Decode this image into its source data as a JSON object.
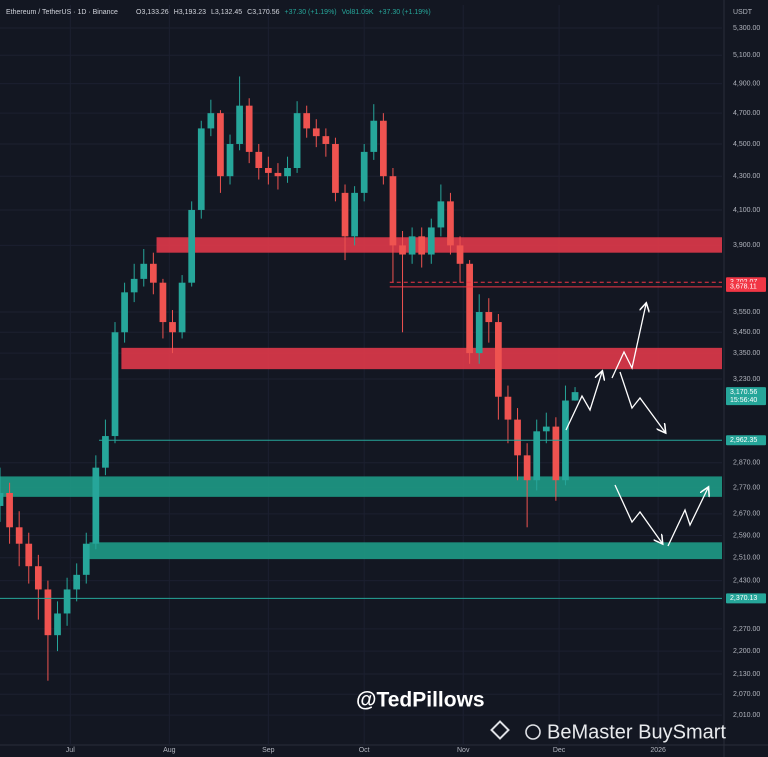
{
  "chart_data": {
    "type": "candlestick",
    "symbol": "Ethereum / TetherUS · 1D · Binance",
    "header": [
      "O3,133.26",
      "H3,193.23",
      "L3,132.45",
      "C3,170.56",
      "+37.30 (+1.19%)",
      "Vol81.09K",
      "+37.30 (+1.19%)"
    ],
    "currency": "USDT",
    "log_scale": true,
    "up_color": "#26a69a",
    "down_color": "#ef5350",
    "xlim": [
      0,
      226
    ],
    "xticks": [
      {
        "value": 22,
        "label": "Jul"
      },
      {
        "value": 53,
        "label": "Aug"
      },
      {
        "value": 84,
        "label": "Sep"
      },
      {
        "value": 114,
        "label": "Oct"
      },
      {
        "value": 145,
        "label": "Nov"
      },
      {
        "value": 175,
        "label": "Dec"
      },
      {
        "value": 206,
        "label": "2026"
      }
    ],
    "ylim": [
      1927,
      5475
    ],
    "yticks": [
      {
        "value": 5300,
        "label": "5,300.00"
      },
      {
        "value": 5100,
        "label": "5,100.00"
      },
      {
        "value": 4900,
        "label": "4,900.00"
      },
      {
        "value": 4700,
        "label": "4,700.00"
      },
      {
        "value": 4500,
        "label": "4,500.00"
      },
      {
        "value": 4300,
        "label": "4,300.00"
      },
      {
        "value": 4100,
        "label": "4,100.00"
      },
      {
        "value": 3900,
        "label": "3,900.00"
      },
      {
        "value": 3550,
        "label": "3,550.00"
      },
      {
        "value": 3450,
        "label": "3,450.00"
      },
      {
        "value": 3350,
        "label": "3,350.00"
      },
      {
        "value": 3230,
        "label": "3,230.00"
      },
      {
        "value": 2870,
        "label": "2,870.00"
      },
      {
        "value": 2770,
        "label": "2,770.00"
      },
      {
        "value": 2670,
        "label": "2,670.00"
      },
      {
        "value": 2590,
        "label": "2,590.00"
      },
      {
        "value": 2510,
        "label": "2,510.00"
      },
      {
        "value": 2430,
        "label": "2,430.00"
      },
      {
        "value": 2270,
        "label": "2,270.00"
      },
      {
        "value": 2200,
        "label": "2,200.00"
      },
      {
        "value": 2130,
        "label": "2,130.00"
      },
      {
        "value": 2070,
        "label": "2,070.00"
      },
      {
        "value": 2010,
        "label": "2,010.00"
      }
    ],
    "x": [
      0,
      3,
      6,
      9,
      12,
      15,
      18,
      21,
      24,
      27,
      30,
      33,
      36,
      39,
      42,
      45,
      48,
      51,
      54,
      57,
      60,
      63,
      66,
      69,
      72,
      75,
      78,
      81,
      84,
      87,
      90,
      93,
      96,
      99,
      102,
      105,
      108,
      111,
      114,
      117,
      120,
      123,
      126,
      129,
      132,
      135,
      138,
      141,
      144,
      147,
      150,
      153,
      156,
      159,
      162,
      165,
      168,
      171,
      174,
      177,
      180
    ],
    "open": [
      2700,
      2750,
      2620,
      2560,
      2480,
      2400,
      2250,
      2320,
      2400,
      2450,
      2560,
      2850,
      2980,
      3450,
      3650,
      3720,
      3800,
      3700,
      3500,
      3450,
      3700,
      4100,
      4600,
      4700,
      4300,
      4500,
      4750,
      4450,
      4350,
      4320,
      4300,
      4350,
      4700,
      4600,
      4550,
      4500,
      4200,
      3950,
      4200,
      4450,
      4650,
      4300,
      3900,
      3850,
      3950,
      3850,
      4000,
      4150,
      3900,
      3800,
      3350,
      3550,
      3500,
      3150,
      3050,
      2900,
      2800,
      3000,
      3020,
      2800,
      3133.26
    ],
    "high": [
      2850,
      2790,
      2680,
      2600,
      2520,
      2430,
      2360,
      2440,
      2490,
      2600,
      2900,
      3050,
      3500,
      3700,
      3800,
      3880,
      3860,
      3720,
      3560,
      3740,
      4150,
      4650,
      4790,
      4720,
      4560,
      4950,
      4800,
      4500,
      4420,
      4380,
      4420,
      4780,
      4750,
      4660,
      4600,
      4540,
      4250,
      4240,
      4500,
      4760,
      4700,
      4350,
      3980,
      4000,
      4000,
      4050,
      4250,
      4200,
      3950,
      3820,
      3640,
      3620,
      3540,
      3200,
      3100,
      2950,
      3050,
      3080,
      3060,
      3200,
      3193.23
    ],
    "low": [
      2640,
      2560,
      2480,
      2420,
      2300,
      2110,
      2200,
      2280,
      2360,
      2420,
      2540,
      2820,
      2950,
      3400,
      3600,
      3680,
      3640,
      3420,
      3350,
      3420,
      3680,
      4050,
      4550,
      4200,
      4250,
      4460,
      4380,
      4280,
      4250,
      4220,
      4260,
      4320,
      4540,
      4480,
      4420,
      4150,
      3820,
      3900,
      4150,
      4400,
      4250,
      3700,
      3450,
      3800,
      3780,
      3800,
      3950,
      3850,
      3700,
      3300,
      3300,
      3400,
      3050,
      2950,
      2800,
      2620,
      2760,
      2950,
      2720,
      2780,
      3132.45
    ],
    "close": [
      2750,
      2620,
      2560,
      2480,
      2400,
      2250,
      2320,
      2400,
      2450,
      2560,
      2850,
      2980,
      3450,
      3650,
      3720,
      3800,
      3700,
      3500,
      3450,
      3700,
      4100,
      4600,
      4700,
      4300,
      4500,
      4750,
      4450,
      4350,
      4320,
      4300,
      4350,
      4700,
      4600,
      4550,
      4500,
      4200,
      3950,
      4200,
      4450,
      4650,
      4300,
      3900,
      3850,
      3950,
      3850,
      4000,
      4150,
      3900,
      3800,
      3350,
      3550,
      3500,
      3150,
      3050,
      2900,
      2800,
      3000,
      3020,
      2800,
      3133.26,
      3170.56
    ],
    "zones": [
      {
        "from": 49,
        "low": 3860,
        "high": 3945,
        "color": "#e0394a"
      },
      {
        "from": 38,
        "low": 3275,
        "high": 3375,
        "color": "#e0394a"
      },
      {
        "from": 0,
        "low": 2735,
        "high": 2815,
        "color": "#1e9a86"
      },
      {
        "from": 28,
        "low": 2505,
        "high": 2565,
        "color": "#1e9a86"
      }
    ],
    "price_lines": [
      {
        "value": 3702.07,
        "label": "3,702.07",
        "color": "#f23645",
        "from": 122,
        "dashed": true
      },
      {
        "value": 3678.11,
        "label": "3,678.11",
        "color": "#f23645",
        "from": 122,
        "dashed": false
      },
      {
        "value": 3170.56,
        "label": "3,170.56",
        "color": "#26a69a",
        "from": 226,
        "dashed": false,
        "countdown": "15:56:40"
      },
      {
        "value": 2962.35,
        "label": "2,962.35",
        "color": "#26a69a",
        "from": 31,
        "dashed": false
      },
      {
        "value": 2370.13,
        "label": "2,370.13",
        "color": "#26a69a",
        "from": 0,
        "dashed": false
      }
    ],
    "annotations": [
      "@TedPillows",
      "BeMaster BuySmart"
    ]
  }
}
